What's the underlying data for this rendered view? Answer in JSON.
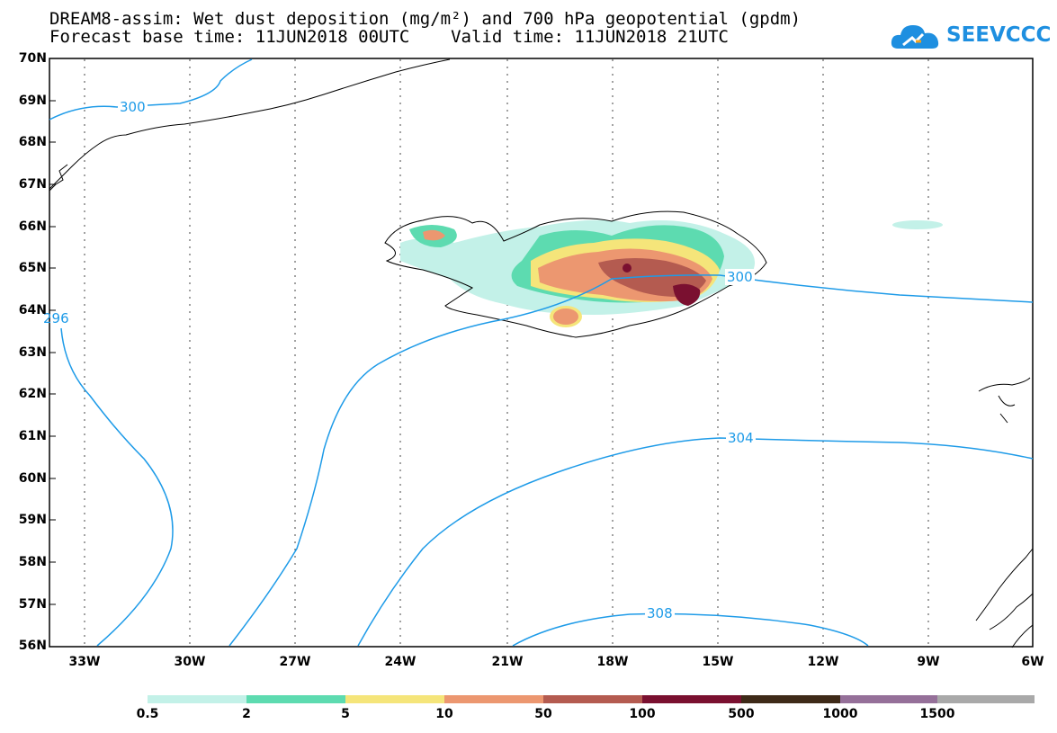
{
  "header": {
    "title_line1": "DREAM8-assim: Wet dust deposition (mg/m²) and 700 hPa geopotential (gpdm)",
    "title_line2": "Forecast base time: 11JUN2018 00UTC    Valid time: 11JUN2018 21UTC",
    "logo_text": "SEEVCCC"
  },
  "map": {
    "lat_labels": [
      "70N",
      "69N",
      "68N",
      "67N",
      "66N",
      "65N",
      "64N",
      "63N",
      "62N",
      "61N",
      "60N",
      "59N",
      "58N",
      "57N",
      "56N"
    ],
    "lon_labels": [
      "33W",
      "30W",
      "27W",
      "24W",
      "21W",
      "18W",
      "15W",
      "12W",
      "9W",
      "6W"
    ],
    "contour_labels": [
      "300",
      "300",
      "296",
      "304",
      "308"
    ]
  },
  "colorbar": {
    "labels": [
      "0.5",
      "2",
      "5",
      "10",
      "50",
      "100",
      "500",
      "1000",
      "1500"
    ],
    "colors": [
      "#c3f1e8",
      "#5ddbb0",
      "#f5e57a",
      "#ec9770",
      "#b45b50",
      "#7a1030",
      "#3e2a18",
      "#957099",
      "#a9a9a9"
    ]
  }
}
